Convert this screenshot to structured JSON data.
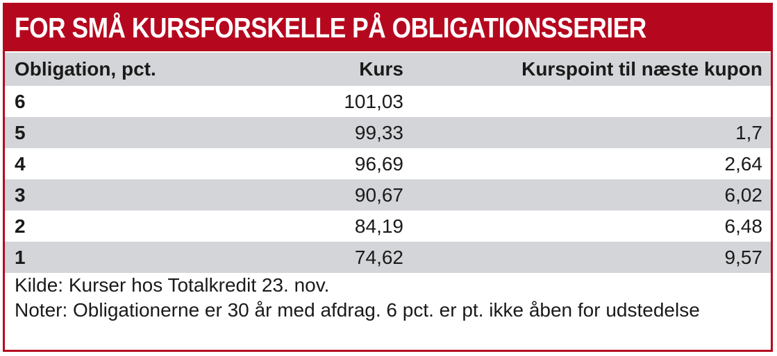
{
  "title": "FOR SMÅ KURSFORSKELLE PÅ OBLIGATIONSSERIER",
  "colors": {
    "accent": "#b5081e",
    "row_shade": "#d4d5d8"
  },
  "chart_data": {
    "type": "table",
    "title": "FOR SMÅ KURSFORSKELLE PÅ OBLIGATIONSSERIER",
    "columns": [
      "Obligation, pct.",
      "Kurs",
      "Kurspoint til næste kupon"
    ],
    "rows": [
      [
        "6",
        "101,03",
        ""
      ],
      [
        "5",
        "99,33",
        "1,7"
      ],
      [
        "4",
        "96,69",
        "2,64"
      ],
      [
        "3",
        "90,67",
        "6,02"
      ],
      [
        "2",
        "84,19",
        "6,48"
      ],
      [
        "1",
        "74,62",
        "9,57"
      ]
    ],
    "source": "Kilde: Kurser hos Totalkredit 23. nov.",
    "note": "Noter: Obligationerne er 30 år med afdrag. 6 pct. er pt. ikke åben for udstedelse"
  }
}
